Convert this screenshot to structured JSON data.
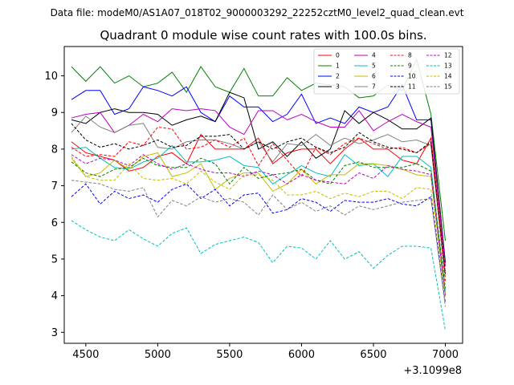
{
  "figure": {
    "suptitle": "Data file: modeM0/AS1A07_018T02_9000003292_22252cztM0_level2_quad_clean.evt"
  },
  "chart_data": {
    "type": "line",
    "title": "Quadrant 0 module wise count rates with 100.0s bins.",
    "xlabel": "",
    "ylabel": "",
    "x_offset_label": "+3.1099e8",
    "x": [
      4400,
      4500,
      4600,
      4700,
      4800,
      4900,
      5000,
      5100,
      5200,
      5300,
      5400,
      5500,
      5600,
      5700,
      5800,
      5900,
      6000,
      6100,
      6200,
      6300,
      6400,
      6500,
      6600,
      6700,
      6800,
      6900,
      7000
    ],
    "xlim": [
      4350,
      7120
    ],
    "ylim": [
      2.7,
      10.8
    ],
    "xticks": [
      4500,
      5000,
      5500,
      6000,
      6500,
      7000
    ],
    "xtick_labels": [
      "4500",
      "5000",
      "5500",
      "6000",
      "6500",
      "7000"
    ],
    "yticks": [
      3,
      4,
      5,
      6,
      7,
      8,
      9,
      10
    ],
    "ytick_labels": [
      "3",
      "4",
      "5",
      "6",
      "7",
      "8",
      "9",
      "10"
    ],
    "legend_position": "top-right",
    "legend_columns": 4,
    "series": [
      {
        "name": "0",
        "color": "#ff0000",
        "style": "solid",
        "values": [
          8.2,
          7.9,
          7.8,
          7.7,
          7.4,
          7.5,
          7.8,
          7.9,
          7.6,
          8.4,
          8.0,
          8.0,
          8.0,
          8.3,
          7.6,
          7.9,
          8.0,
          8.0,
          7.6,
          8.0,
          8.3,
          8.0,
          8.0,
          7.7,
          7.6,
          8.3,
          4.6
        ]
      },
      {
        "name": "1",
        "color": "#008000",
        "style": "solid",
        "values": [
          10.25,
          9.85,
          10.25,
          9.8,
          10.0,
          9.7,
          9.8,
          10.1,
          9.55,
          10.25,
          9.7,
          9.55,
          10.2,
          9.45,
          9.45,
          9.95,
          9.6,
          9.8,
          9.75,
          9.7,
          9.4,
          9.45,
          9.75,
          9.6,
          10.45,
          8.95,
          5.5
        ]
      },
      {
        "name": "2",
        "color": "#0000ff",
        "style": "solid",
        "values": [
          9.35,
          9.6,
          9.6,
          8.95,
          9.1,
          9.7,
          9.6,
          9.45,
          9.7,
          9.0,
          8.75,
          9.45,
          9.15,
          9.15,
          8.75,
          8.95,
          9.5,
          8.7,
          8.85,
          8.7,
          9.15,
          9.0,
          9.15,
          9.75,
          8.8,
          8.8,
          4.9
        ]
      },
      {
        "name": "3",
        "color": "#000000",
        "style": "solid",
        "values": [
          8.8,
          8.7,
          9.0,
          9.1,
          9.0,
          9.0,
          8.95,
          8.65,
          8.8,
          8.9,
          8.75,
          9.55,
          9.4,
          8.0,
          8.2,
          7.8,
          8.2,
          7.75,
          8.0,
          9.05,
          8.7,
          9.0,
          8.8,
          8.55,
          8.55,
          8.85,
          4.9
        ]
      },
      {
        "name": "4",
        "color": "#bf00bf",
        "style": "solid",
        "values": [
          8.85,
          8.95,
          9.0,
          8.45,
          8.65,
          8.95,
          8.75,
          9.1,
          9.05,
          9.1,
          9.05,
          8.6,
          8.4,
          9.05,
          9.05,
          8.8,
          8.95,
          8.75,
          8.6,
          8.6,
          9.05,
          8.5,
          8.75,
          8.95,
          8.75,
          8.6,
          4.8
        ]
      },
      {
        "name": "5",
        "color": "#00bfbf",
        "style": "solid",
        "values": [
          8.0,
          8.05,
          7.75,
          7.5,
          7.45,
          7.65,
          7.75,
          8.1,
          7.65,
          7.65,
          7.7,
          7.8,
          7.55,
          7.5,
          7.05,
          7.3,
          7.55,
          7.35,
          7.25,
          7.85,
          7.55,
          7.6,
          7.25,
          7.8,
          7.8,
          7.5,
          4.1
        ]
      },
      {
        "name": "6",
        "color": "#bfbf00",
        "style": "solid",
        "values": [
          7.75,
          7.25,
          7.35,
          7.7,
          7.45,
          7.8,
          7.9,
          7.25,
          7.35,
          7.6,
          6.9,
          7.2,
          7.35,
          7.35,
          6.85,
          7.05,
          7.45,
          7.05,
          7.3,
          7.3,
          7.6,
          7.6,
          7.55,
          7.45,
          7.3,
          7.25,
          4.0
        ]
      },
      {
        "name": "7",
        "color": "#808080",
        "style": "solid",
        "values": [
          8.45,
          8.9,
          8.6,
          8.45,
          8.65,
          8.7,
          8.05,
          8.0,
          8.2,
          8.25,
          8.25,
          8.15,
          8.0,
          8.2,
          7.65,
          8.15,
          8.1,
          8.4,
          8.1,
          8.3,
          8.15,
          8.25,
          8.4,
          8.2,
          8.25,
          8.1,
          4.5
        ]
      },
      {
        "name": "8",
        "color": "#ff0000",
        "style": "dashed",
        "values": [
          8.05,
          7.8,
          7.85,
          7.8,
          8.2,
          8.1,
          8.6,
          8.55,
          8.0,
          8.05,
          8.25,
          8.05,
          8.3,
          7.55,
          8.15,
          7.7,
          7.25,
          8.05,
          7.85,
          8.15,
          8.3,
          8.15,
          8.0,
          8.05,
          7.9,
          8.15,
          4.4
        ]
      },
      {
        "name": "9",
        "color": "#008000",
        "style": "dashed",
        "values": [
          7.65,
          7.35,
          7.25,
          7.45,
          7.5,
          7.75,
          7.55,
          7.5,
          7.5,
          7.75,
          7.6,
          7.05,
          7.5,
          7.2,
          7.3,
          7.35,
          7.45,
          7.15,
          7.05,
          7.55,
          7.65,
          7.5,
          7.5,
          7.5,
          7.6,
          7.4,
          4.2
        ]
      },
      {
        "name": "10",
        "color": "#0000ff",
        "style": "dashed",
        "values": [
          6.7,
          7.05,
          6.5,
          6.85,
          6.65,
          6.75,
          6.55,
          6.9,
          7.05,
          6.65,
          6.9,
          6.45,
          6.75,
          6.8,
          6.25,
          6.35,
          6.65,
          6.55,
          6.3,
          6.6,
          6.55,
          6.55,
          6.65,
          6.5,
          6.45,
          6.7,
          3.8
        ]
      },
      {
        "name": "11",
        "color": "#000000",
        "style": "dashed",
        "values": [
          8.7,
          8.25,
          8.05,
          8.15,
          8.0,
          8.1,
          8.25,
          8.05,
          8.1,
          8.35,
          8.35,
          8.4,
          8.0,
          8.2,
          8.0,
          8.2,
          8.3,
          8.05,
          7.9,
          8.05,
          8.45,
          8.2,
          8.05,
          8.0,
          7.9,
          8.2,
          4.6
        ]
      },
      {
        "name": "12",
        "color": "#bf00bf",
        "style": "dashed",
        "values": [
          7.85,
          7.6,
          7.75,
          7.7,
          7.55,
          7.85,
          7.6,
          7.45,
          7.6,
          7.45,
          7.35,
          7.35,
          7.25,
          7.4,
          7.3,
          7.05,
          7.3,
          7.15,
          7.1,
          7.05,
          7.35,
          7.2,
          7.55,
          7.45,
          7.4,
          7.3,
          4.0
        ]
      },
      {
        "name": "13",
        "color": "#00bfbf",
        "style": "dashed",
        "values": [
          6.05,
          5.8,
          5.6,
          5.5,
          5.8,
          5.55,
          5.35,
          5.7,
          5.85,
          5.15,
          5.4,
          5.5,
          5.6,
          5.45,
          4.9,
          5.35,
          5.3,
          5.0,
          5.5,
          5.0,
          5.2,
          4.75,
          5.1,
          5.35,
          5.35,
          5.3,
          3.05
        ]
      },
      {
        "name": "14",
        "color": "#bfbf00",
        "style": "dashed",
        "values": [
          7.8,
          7.25,
          7.15,
          7.15,
          7.6,
          7.2,
          7.15,
          7.2,
          7.05,
          7.4,
          7.1,
          6.9,
          7.3,
          7.3,
          7.15,
          6.75,
          6.75,
          6.85,
          6.65,
          6.8,
          6.7,
          6.85,
          6.85,
          6.65,
          6.95,
          6.9,
          3.9
        ]
      },
      {
        "name": "15",
        "color": "#808080",
        "style": "dashed",
        "values": [
          7.15,
          7.1,
          7.05,
          6.9,
          6.85,
          6.95,
          6.15,
          6.6,
          6.45,
          6.7,
          6.55,
          6.65,
          6.55,
          6.2,
          6.75,
          6.35,
          6.55,
          6.3,
          6.45,
          6.2,
          6.45,
          6.35,
          6.45,
          6.55,
          6.6,
          6.65,
          3.7
        ]
      }
    ]
  }
}
